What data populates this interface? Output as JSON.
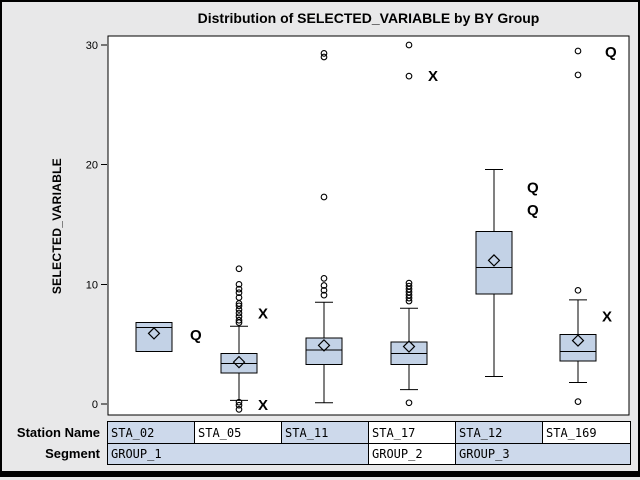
{
  "figure": {
    "title": "Distribution of SELECTED_VARIABLE by BY Group",
    "background": "#E8E8E9",
    "border_color": "#000000"
  },
  "chart_data": {
    "type": "boxplot",
    "title": "Distribution of SELECTED_VARIABLE by BY Group",
    "xlabel": "",
    "ylabel": "SELECTED_VARIABLE",
    "ylim": [
      0,
      30
    ],
    "yticks": [
      0,
      10,
      20,
      30
    ],
    "grid": false,
    "legend": "none",
    "box_fill": "#C3D2E6",
    "box_stroke": "#000000",
    "annotation_color": "#000000",
    "groups": [
      {
        "station": "STA_02",
        "segment": "GROUP_1",
        "q1": 4.4,
        "median": 6.4,
        "q3": 6.8,
        "mean": 5.9,
        "whisker_low": null,
        "whisker_high": null,
        "outliers": [],
        "annotations": [
          {
            "text": "Q",
            "value": 5.75,
            "dx": 36
          }
        ]
      },
      {
        "station": "STA_05",
        "segment": "GROUP_1",
        "q1": 2.6,
        "median": 3.4,
        "q3": 4.2,
        "mean": 3.5,
        "whisker_low": 0.3,
        "whisker_high": 6.5,
        "outliers": [
          11.3,
          10.0,
          9.6,
          9.3,
          8.9,
          8.4,
          8.2,
          7.9,
          7.6,
          7.3,
          7.0,
          6.8,
          0.15,
          -0.1,
          -0.45
        ],
        "annotations": [
          {
            "text": "X",
            "value": 7.55,
            "dx": 19
          },
          {
            "text": "X",
            "value": -0.1,
            "dx": 19
          }
        ]
      },
      {
        "station": "STA_11",
        "segment": "GROUP_1",
        "q1": 3.3,
        "median": 4.5,
        "q3": 5.5,
        "mean": 4.9,
        "whisker_low": 0.1,
        "whisker_high": 8.5,
        "outliers": [
          29.3,
          29.0,
          17.3,
          10.5,
          9.9,
          9.5,
          9.1
        ],
        "annotations": []
      },
      {
        "station": "STA_17",
        "segment": "GROUP_2",
        "q1": 3.3,
        "median": 4.2,
        "q3": 5.2,
        "mean": 4.8,
        "whisker_low": 1.2,
        "whisker_high": 8.0,
        "outliers": [
          30.0,
          27.4,
          10.1,
          9.85,
          9.6,
          9.35,
          9.1,
          8.85,
          8.6,
          0.1
        ],
        "annotations": [
          {
            "text": "X",
            "value": 27.4,
            "dx": 19
          }
        ]
      },
      {
        "station": "STA_12",
        "segment": "GROUP_3",
        "q1": 9.2,
        "median": 11.4,
        "q3": 14.4,
        "mean": 12.0,
        "whisker_low": 2.3,
        "whisker_high": 19.6,
        "outliers": [],
        "annotations": [
          {
            "text": "Q",
            "value": 18.1,
            "dx": 33
          },
          {
            "text": "Q",
            "value": 16.2,
            "dx": 33
          }
        ]
      },
      {
        "station": "STA_169",
        "segment": "GROUP_3",
        "q1": 3.6,
        "median": 4.4,
        "q3": 5.8,
        "mean": 5.3,
        "whisker_low": 1.8,
        "whisker_high": 8.7,
        "outliers": [
          29.5,
          27.5,
          9.5,
          0.2
        ],
        "annotations": [
          {
            "text": "Q",
            "value": 29.4,
            "dx": 27
          },
          {
            "text": "X",
            "value": 7.3,
            "dx": 24
          }
        ]
      }
    ]
  },
  "table": {
    "row_headers": [
      "Station Name",
      "Segment"
    ],
    "stations": [
      "STA_02",
      "STA_05",
      "STA_11",
      "STA_17",
      "STA_12",
      "STA_169"
    ],
    "segments": [
      {
        "label": "GROUP_1",
        "span": 3
      },
      {
        "label": "GROUP_2",
        "span": 1
      },
      {
        "label": "GROUP_3",
        "span": 2
      }
    ],
    "colors": {
      "blue_cell": "#CDD9EB",
      "white_cell": "#FFFFFF"
    }
  }
}
